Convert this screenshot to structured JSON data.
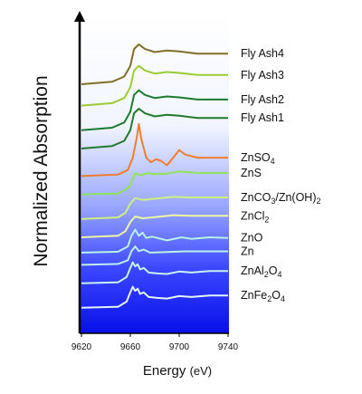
{
  "chart_data": {
    "type": "line",
    "title": "",
    "xlabel": "Energy",
    "xlabel_unit": "(eV)",
    "ylabel": "Normalized Absorption",
    "xlim": [
      9620,
      9740
    ],
    "x_ticks": [
      "9620",
      "9660",
      "9700",
      "9740"
    ],
    "grid": false,
    "background": "white-to-blue vertical gradient",
    "series": [
      {
        "name": "Fly Ash4",
        "color": "#7f6f2a",
        "baseline": 0.79,
        "shape": "flyash"
      },
      {
        "name": "Fly Ash3",
        "color": "#9acd32",
        "baseline": 0.72,
        "shape": "flyash"
      },
      {
        "name": "Fly Ash2",
        "color": "#1e7b30",
        "baseline": 0.64,
        "shape": "flyash"
      },
      {
        "name": "Fly Ash1",
        "color": "#217a2d",
        "baseline": 0.58,
        "shape": "flyash"
      },
      {
        "name": "ZnSO4",
        "label_main": "ZnSO",
        "label_sub": "4",
        "color": "#ef7d2f",
        "baseline": 0.49,
        "shape": "znso4"
      },
      {
        "name": "ZnS",
        "color": "#8fe35a",
        "baseline": 0.43,
        "shape": "zns"
      },
      {
        "name": "ZnCO3/Zn(OH)2",
        "label_main": "ZnCO",
        "label_sub": "3",
        "label_main2": "/Zn(OH)",
        "label_sub2": "2",
        "color": "#ccf07a",
        "baseline": 0.35,
        "shape": "smooth"
      },
      {
        "name": "ZnCl2",
        "label_main": "ZnCl",
        "label_sub": "2",
        "color": "#ecf7a0",
        "baseline": 0.29,
        "shape": "smooth"
      },
      {
        "name": "ZnO",
        "color": "#b6f2ea",
        "baseline": 0.24,
        "shape": "zno"
      },
      {
        "name": "Zn",
        "color": "#bbefe8",
        "baseline": 0.2,
        "shape": "zn"
      },
      {
        "name": "ZnAl2O4",
        "label_main": "ZnAl",
        "label_sub": "2",
        "label_main2": "O",
        "label_sub2": "4",
        "color": "#c6f2ef",
        "baseline": 0.14,
        "shape": "spinel"
      },
      {
        "name": "ZnFe2O4",
        "label_main": "ZnFe",
        "label_sub": "2",
        "label_main2": "O",
        "label_sub2": "4",
        "color": "#e2f4f7",
        "baseline": 0.06,
        "shape": "spinel"
      }
    ]
  }
}
